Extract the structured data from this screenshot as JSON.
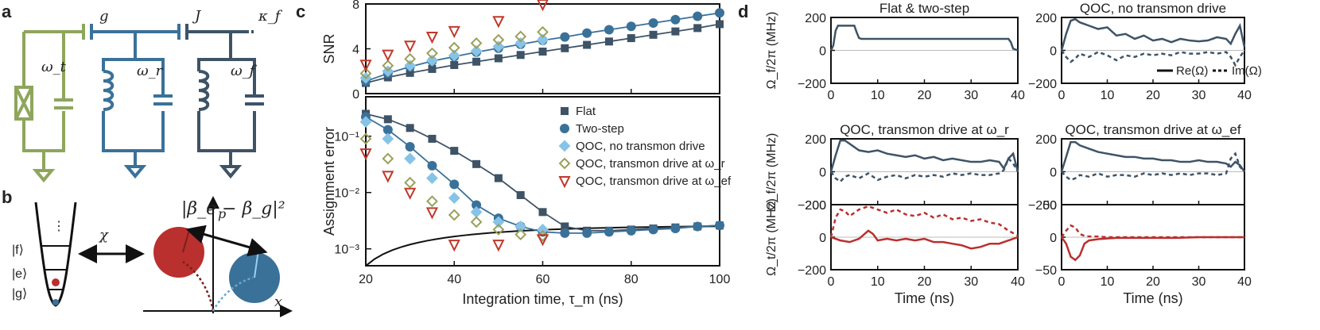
{
  "colors": {
    "green": "#8ea65b",
    "blue": "#3a7199",
    "dark": "#3e5366",
    "red": "#b9302e",
    "light": "#87c3e6",
    "olive": "#9aa05a",
    "darkred": "#c0392b",
    "black": "#111111"
  },
  "panels": {
    "a": "a",
    "b": "b",
    "c": "c",
    "d": "d"
  },
  "circuit": {
    "g": "g",
    "J": "J",
    "kappa": "κ_f",
    "wt": "ω_t",
    "wr": "ω_r",
    "wf": "ω_f"
  },
  "levels": {
    "dots": "⋮",
    "f": "|f⟩",
    "e": "|e⟩",
    "g": "|g⟩",
    "chi": "χ",
    "beta": "|β_e − β_g|²",
    "p": "p",
    "x": "x"
  },
  "chart_data": [
    {
      "id": "snr",
      "type": "scatter",
      "ylabel": "SNR",
      "xlim": [
        20,
        100
      ],
      "ylim": [
        0,
        8
      ],
      "yticks": [
        0,
        4,
        8
      ],
      "xticks": [
        20,
        40,
        60,
        80,
        100
      ],
      "series": [
        {
          "name": "Flat",
          "marker": "square",
          "x": [
            20,
            25,
            30,
            35,
            40,
            45,
            50,
            55,
            60,
            65,
            70,
            75,
            80,
            85,
            90,
            95,
            100
          ],
          "y": [
            0.95,
            1.45,
            1.85,
            2.2,
            2.55,
            2.85,
            3.15,
            3.45,
            3.75,
            4.05,
            4.35,
            4.65,
            4.95,
            5.25,
            5.55,
            5.85,
            6.2
          ]
        },
        {
          "name": "Two-step",
          "marker": "circle",
          "x": [
            20,
            25,
            30,
            35,
            40,
            45,
            50,
            55,
            60,
            65,
            70,
            75,
            80,
            85,
            90,
            95,
            100
          ],
          "y": [
            1.1,
            1.8,
            2.4,
            2.9,
            3.3,
            3.7,
            4.05,
            4.4,
            4.75,
            5.05,
            5.4,
            5.7,
            6.0,
            6.3,
            6.6,
            6.9,
            7.2
          ]
        },
        {
          "name": "QOC, no transmon drive",
          "marker": "diamond",
          "x": [
            20,
            25,
            30,
            35,
            40,
            45,
            50,
            55,
            60
          ],
          "y": [
            1.4,
            2.0,
            2.5,
            2.95,
            3.4,
            3.8,
            4.2,
            4.5,
            4.8
          ]
        },
        {
          "name": "QOC, transmon drive at ω_r",
          "marker": "diamond-open",
          "x": [
            20,
            25,
            30,
            35,
            40,
            45,
            50,
            55,
            60
          ],
          "y": [
            1.8,
            2.5,
            3.1,
            3.6,
            4.1,
            4.5,
            4.8,
            5.1,
            5.5
          ]
        },
        {
          "name": "QOC, transmon drive at ω_ef",
          "marker": "triangle-open",
          "x": [
            20,
            25,
            30,
            35,
            40,
            50,
            60
          ],
          "y": [
            2.6,
            3.5,
            4.3,
            5.1,
            5.6,
            6.5,
            8.0
          ]
        }
      ]
    },
    {
      "id": "error",
      "type": "scatter",
      "ylabel": "Assignment error",
      "xlabel": "Integration time, τ_m (ns)",
      "xlim": [
        20,
        100
      ],
      "ylim_log10": [
        -3.3,
        -0.3
      ],
      "yticks": [
        "10⁻¹",
        "10⁻²",
        "10⁻³"
      ],
      "xticks": [
        20,
        40,
        60,
        80,
        100
      ],
      "series": [
        {
          "name": "Flat",
          "marker": "square",
          "x": [
            20,
            25,
            30,
            35,
            40,
            45,
            50,
            55,
            60,
            65,
            70,
            75,
            80,
            85,
            90,
            95,
            100
          ],
          "y": [
            0.25,
            0.2,
            0.14,
            0.09,
            0.055,
            0.032,
            0.018,
            0.009,
            0.0045,
            0.0025,
            0.0021,
            0.0021,
            0.0022,
            0.0023,
            0.0024,
            0.0025,
            0.0026
          ]
        },
        {
          "name": "Two-step",
          "marker": "circle",
          "x": [
            20,
            25,
            30,
            35,
            40,
            45,
            50,
            55,
            60,
            65,
            70,
            75,
            80,
            85,
            90,
            95,
            100
          ],
          "y": [
            0.22,
            0.13,
            0.065,
            0.03,
            0.014,
            0.006,
            0.0035,
            0.0025,
            0.002,
            0.0019,
            0.0019,
            0.002,
            0.0021,
            0.0022,
            0.0023,
            0.0025,
            0.0026
          ]
        },
        {
          "name": "QOC, no transmon drive",
          "marker": "diamond",
          "x": [
            20,
            25,
            30,
            35,
            40,
            45,
            50,
            55,
            60
          ],
          "y": [
            0.18,
            0.09,
            0.04,
            0.018,
            0.008,
            0.0045,
            0.003,
            0.0025,
            0.0022
          ]
        },
        {
          "name": "QOC, transmon drive at ω_r",
          "marker": "diamond-open",
          "x": [
            20,
            25,
            30,
            35,
            40,
            45,
            50,
            55,
            60
          ],
          "y": [
            0.09,
            0.04,
            0.015,
            0.007,
            0.004,
            0.003,
            0.0022,
            0.0018,
            0.0017
          ]
        },
        {
          "name": "QOC, transmon drive at ω_ef",
          "marker": "triangle-open",
          "x": [
            20,
            25,
            30,
            35,
            40,
            50,
            60
          ],
          "y": [
            0.05,
            0.02,
            0.01,
            0.0045,
            0.0012,
            0.0012,
            0.0015
          ]
        }
      ]
    },
    {
      "id": "d1",
      "type": "line",
      "title": "Flat & two-step",
      "ylabel": "Ω_f/2π (MHz)",
      "xlim": [
        0,
        40
      ],
      "ylim": [
        -200,
        200
      ],
      "yticks": [
        200,
        0,
        -200
      ],
      "xticks": [
        0,
        10,
        20,
        30,
        40
      ],
      "series": [
        {
          "name": "Re(Ω)",
          "x": [
            0,
            0.5,
            1,
            1.5,
            2,
            5,
            5.5,
            6,
            6.5,
            38,
            38.5,
            39,
            40
          ],
          "y": [
            0,
            30,
            120,
            150,
            150,
            150,
            110,
            75,
            70,
            70,
            50,
            10,
            0
          ]
        }
      ]
    },
    {
      "id": "d2",
      "type": "line",
      "title": "QOC, no transmon drive",
      "ylabel": "",
      "xlim": [
        0,
        40
      ],
      "ylim": [
        -200,
        200
      ],
      "yticks": [
        200,
        0,
        -200
      ],
      "xticks": [
        0,
        10,
        20,
        30,
        40
      ],
      "legend": [
        "Re(Ω)",
        "Im(Ω)"
      ],
      "series": [
        {
          "name": "Re(Ω)",
          "x": [
            0,
            1,
            2,
            3,
            4,
            6,
            8,
            10,
            12,
            14,
            16,
            18,
            20,
            22,
            24,
            26,
            28,
            30,
            32,
            34,
            36,
            37,
            38,
            39,
            40
          ],
          "y": [
            0,
            100,
            180,
            190,
            170,
            150,
            130,
            140,
            90,
            100,
            70,
            90,
            60,
            70,
            50,
            70,
            60,
            55,
            60,
            80,
            70,
            40,
            100,
            150,
            20
          ]
        },
        {
          "name": "Im(Ω)",
          "x": [
            0,
            1,
            2,
            3,
            4,
            6,
            8,
            10,
            12,
            14,
            16,
            18,
            20,
            22,
            24,
            26,
            28,
            30,
            32,
            34,
            36,
            37,
            38,
            39,
            40
          ],
          "y": [
            0,
            -40,
            -70,
            -50,
            -20,
            -40,
            -10,
            -30,
            -60,
            -30,
            -40,
            -20,
            -30,
            -20,
            -30,
            -10,
            -20,
            -20,
            -10,
            -20,
            -10,
            -40,
            -90,
            -40,
            0
          ]
        }
      ]
    },
    {
      "id": "d3",
      "type": "line",
      "title": "QOC, transmon drive at ω_r",
      "ylabel": "Ω_f/2π (MHz)",
      "xlim": [
        0,
        40
      ],
      "ylim": [
        -200,
        200
      ],
      "yticks": [
        200,
        0,
        -200
      ],
      "xticks": [
        0,
        10,
        20,
        30,
        40
      ],
      "series": [
        {
          "name": "Re(Ω)",
          "x": [
            0,
            1,
            2,
            3,
            4,
            6,
            8,
            10,
            12,
            14,
            16,
            18,
            20,
            22,
            24,
            26,
            28,
            30,
            32,
            34,
            36,
            37,
            38,
            39,
            40
          ],
          "y": [
            0,
            100,
            190,
            190,
            170,
            130,
            120,
            130,
            110,
            100,
            90,
            100,
            80,
            90,
            70,
            80,
            70,
            60,
            60,
            70,
            60,
            20,
            80,
            110,
            0
          ]
        },
        {
          "name": "Im(Ω)",
          "x": [
            0,
            1,
            2,
            3,
            4,
            6,
            8,
            10,
            12,
            14,
            16,
            18,
            20,
            22,
            24,
            26,
            28,
            30,
            32,
            34,
            36,
            37,
            38,
            39,
            40
          ],
          "y": [
            0,
            -40,
            -60,
            -30,
            -20,
            -40,
            -10,
            -50,
            -30,
            -20,
            -40,
            -20,
            -30,
            -20,
            -30,
            -10,
            -20,
            -10,
            -20,
            -20,
            -10,
            10,
            80,
            50,
            0
          ]
        }
      ]
    },
    {
      "id": "d4",
      "type": "line",
      "title": "QOC, transmon drive at ω_ef",
      "ylabel": "",
      "xlim": [
        0,
        40
      ],
      "ylim": [
        -200,
        200
      ],
      "yticks": [
        200,
        0,
        -200
      ],
      "xticks": [
        0,
        10,
        20,
        30,
        40
      ],
      "series": [
        {
          "name": "Re(Ω)",
          "x": [
            0,
            1,
            2,
            3,
            4,
            6,
            8,
            10,
            12,
            14,
            16,
            18,
            20,
            22,
            24,
            26,
            28,
            30,
            32,
            34,
            36,
            37,
            38,
            39,
            40
          ],
          "y": [
            0,
            90,
            180,
            180,
            160,
            140,
            120,
            110,
            100,
            90,
            90,
            80,
            80,
            70,
            70,
            60,
            60,
            70,
            60,
            60,
            50,
            30,
            60,
            40,
            0
          ]
        },
        {
          "name": "Im(Ω)",
          "x": [
            0,
            1,
            2,
            3,
            4,
            6,
            8,
            10,
            12,
            14,
            16,
            18,
            20,
            22,
            24,
            26,
            28,
            30,
            32,
            34,
            36,
            37,
            38,
            39,
            40
          ],
          "y": [
            0,
            -30,
            -50,
            -40,
            -20,
            -30,
            -10,
            -30,
            -20,
            -20,
            -30,
            -10,
            -20,
            -10,
            -20,
            -10,
            -20,
            -10,
            -10,
            -20,
            -10,
            80,
            110,
            30,
            0
          ]
        }
      ]
    },
    {
      "id": "d5",
      "type": "line",
      "title": "",
      "ylabel": "Ω_t/2π (MHz)",
      "xlabel": "Time (ns)",
      "xlim": [
        0,
        40
      ],
      "ylim": [
        -200,
        200
      ],
      "yticks": [
        200,
        0,
        -200
      ],
      "xticks": [
        0,
        10,
        20,
        30,
        40
      ],
      "series": [
        {
          "name": "Re(Ω)",
          "x": [
            0,
            2,
            4,
            6,
            8,
            9,
            10,
            12,
            14,
            16,
            18,
            20,
            22,
            24,
            26,
            28,
            30,
            32,
            34,
            36,
            38,
            40
          ],
          "y": [
            0,
            -20,
            -30,
            -10,
            40,
            20,
            -20,
            -10,
            -20,
            -10,
            -20,
            -10,
            -30,
            -30,
            -40,
            -50,
            -70,
            -60,
            -40,
            -40,
            -20,
            0
          ]
        },
        {
          "name": "Im(Ω)",
          "x": [
            0,
            1,
            2,
            3,
            4,
            6,
            8,
            10,
            12,
            14,
            16,
            18,
            20,
            22,
            24,
            26,
            28,
            30,
            32,
            34,
            36,
            38,
            40
          ],
          "y": [
            0,
            120,
            170,
            160,
            130,
            170,
            190,
            170,
            150,
            170,
            140,
            130,
            150,
            120,
            140,
            110,
            120,
            100,
            110,
            90,
            80,
            40,
            10
          ]
        }
      ]
    },
    {
      "id": "d6",
      "type": "line",
      "title": "",
      "ylabel": "",
      "xlabel": "Time (ns)",
      "xlim": [
        0,
        40
      ],
      "ylim": [
        -50,
        50
      ],
      "yticks": [
        50,
        0,
        -50
      ],
      "xticks": [
        0,
        10,
        20,
        30,
        40
      ],
      "series": [
        {
          "name": "Re(Ω)",
          "x": [
            0,
            1,
            2,
            3,
            4,
            5,
            6,
            8,
            10,
            12,
            15,
            20,
            25,
            30,
            35,
            40
          ],
          "y": [
            0,
            -10,
            -30,
            -35,
            -28,
            -10,
            -5,
            -3,
            -2,
            -1,
            -1,
            -1,
            -1,
            0,
            0,
            0
          ]
        },
        {
          "name": "Im(Ω)",
          "x": [
            0,
            1,
            2,
            3,
            4,
            5,
            6,
            8,
            10,
            12,
            15,
            20,
            25,
            30,
            35,
            40
          ],
          "y": [
            0,
            10,
            18,
            15,
            5,
            2,
            1,
            1,
            0,
            0,
            0,
            0,
            0,
            0,
            0,
            0
          ]
        }
      ]
    }
  ]
}
